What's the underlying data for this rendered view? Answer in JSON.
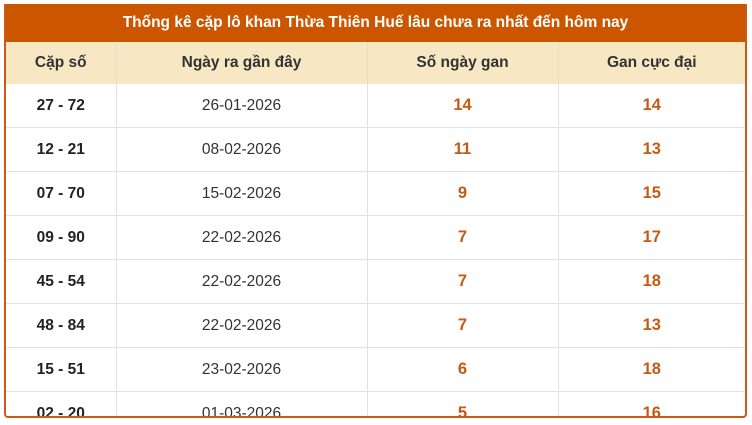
{
  "title": "Thống kê cặp lô khan Thừa Thiên Huế lâu chưa ra nhất đến hôm nay",
  "columns": [
    "Cặp số",
    "Ngày ra gần đây",
    "Số ngày gan",
    "Gan cực đại"
  ],
  "rows": [
    {
      "pair": "27 - 72",
      "date": "26-01-2026",
      "days": "14",
      "max": "14"
    },
    {
      "pair": "12 - 21",
      "date": "08-02-2026",
      "days": "11",
      "max": "13"
    },
    {
      "pair": "07 - 70",
      "date": "15-02-2026",
      "days": "9",
      "max": "15"
    },
    {
      "pair": "09 - 90",
      "date": "22-02-2026",
      "days": "7",
      "max": "17"
    },
    {
      "pair": "45 - 54",
      "date": "22-02-2026",
      "days": "7",
      "max": "18"
    },
    {
      "pair": "48 - 84",
      "date": "22-02-2026",
      "days": "7",
      "max": "13"
    },
    {
      "pair": "15 - 51",
      "date": "23-02-2026",
      "days": "6",
      "max": "18"
    },
    {
      "pair": "02 - 20",
      "date": "01-03-2026",
      "days": "5",
      "max": "16"
    }
  ],
  "colors": {
    "accent": "#cc5500",
    "header_bg": "#f7e7c2",
    "number": "#c45a14"
  }
}
